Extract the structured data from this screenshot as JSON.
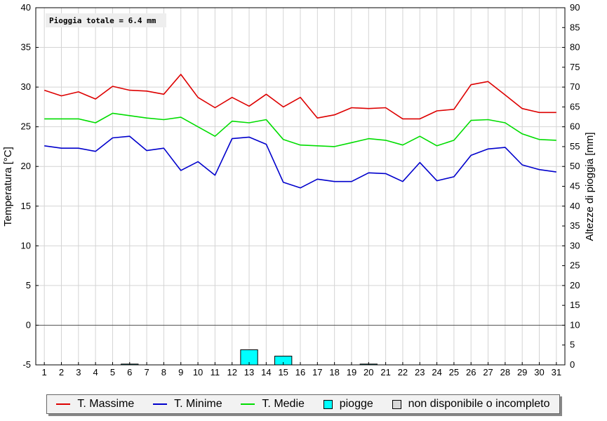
{
  "chart_data": {
    "type": "line",
    "annotation": "Pioggia totale = 6.4 mm",
    "ylabel": "Temperatura [°C]",
    "y2label": "Altezze di pioggia [mm]",
    "x": [
      1,
      2,
      3,
      4,
      5,
      6,
      7,
      8,
      9,
      10,
      11,
      12,
      13,
      14,
      15,
      16,
      17,
      18,
      19,
      20,
      21,
      22,
      23,
      24,
      25,
      26,
      27,
      28,
      29,
      30,
      31
    ],
    "xlim": [
      0.5,
      31.5
    ],
    "ylim": [
      -5,
      40
    ],
    "yticks": [
      -5,
      0,
      5,
      10,
      15,
      20,
      25,
      30,
      35,
      40
    ],
    "y2lim": [
      0,
      90
    ],
    "y2ticks": [
      0,
      5,
      10,
      15,
      20,
      25,
      30,
      35,
      40,
      45,
      50,
      55,
      60,
      65,
      70,
      75,
      80,
      85,
      90
    ],
    "grid": true,
    "legend_position": "bottom",
    "series": [
      {
        "name": "T. Massime",
        "color": "#dd0000",
        "values": [
          29.6,
          28.9,
          29.4,
          28.5,
          30.1,
          29.6,
          29.5,
          29.1,
          31.6,
          28.7,
          27.4,
          28.7,
          27.6,
          29.1,
          27.5,
          28.7,
          26.1,
          26.5,
          27.4,
          27.3,
          27.4,
          26.0,
          26.0,
          27.0,
          27.2,
          30.3,
          30.7,
          29.0,
          27.3,
          26.8,
          26.8
        ]
      },
      {
        "name": "T. Minime",
        "color": "#0000cc",
        "values": [
          22.6,
          22.3,
          22.3,
          21.9,
          23.6,
          23.8,
          22.0,
          22.3,
          19.5,
          20.6,
          18.9,
          23.5,
          23.7,
          22.8,
          18.0,
          17.3,
          18.4,
          18.1,
          18.1,
          19.2,
          19.1,
          18.1,
          20.5,
          18.2,
          18.7,
          21.4,
          22.2,
          22.4,
          20.2,
          19.6,
          19.3
        ]
      },
      {
        "name": "T. Medie",
        "color": "#00dd00",
        "values": [
          26.0,
          26.0,
          26.0,
          25.5,
          26.7,
          26.4,
          26.1,
          25.9,
          26.2,
          25.0,
          23.8,
          25.7,
          25.5,
          25.9,
          23.4,
          22.7,
          22.6,
          22.5,
          23.0,
          23.5,
          23.3,
          22.7,
          23.8,
          22.6,
          23.3,
          25.8,
          25.9,
          25.5,
          24.1,
          23.4,
          23.3
        ]
      }
    ],
    "rain": {
      "name": "piogge",
      "color": "#00ffff",
      "values": [
        0,
        0,
        0,
        0,
        0,
        0.2,
        0,
        0,
        0,
        0,
        0,
        0,
        3.8,
        0,
        2.2,
        0,
        0,
        0,
        0,
        0.2,
        0,
        0,
        0,
        0,
        0,
        0,
        0,
        0,
        0,
        0,
        0
      ]
    },
    "missing": {
      "name": "non disponibile o incompleto",
      "color": "#d8d8d8"
    }
  }
}
